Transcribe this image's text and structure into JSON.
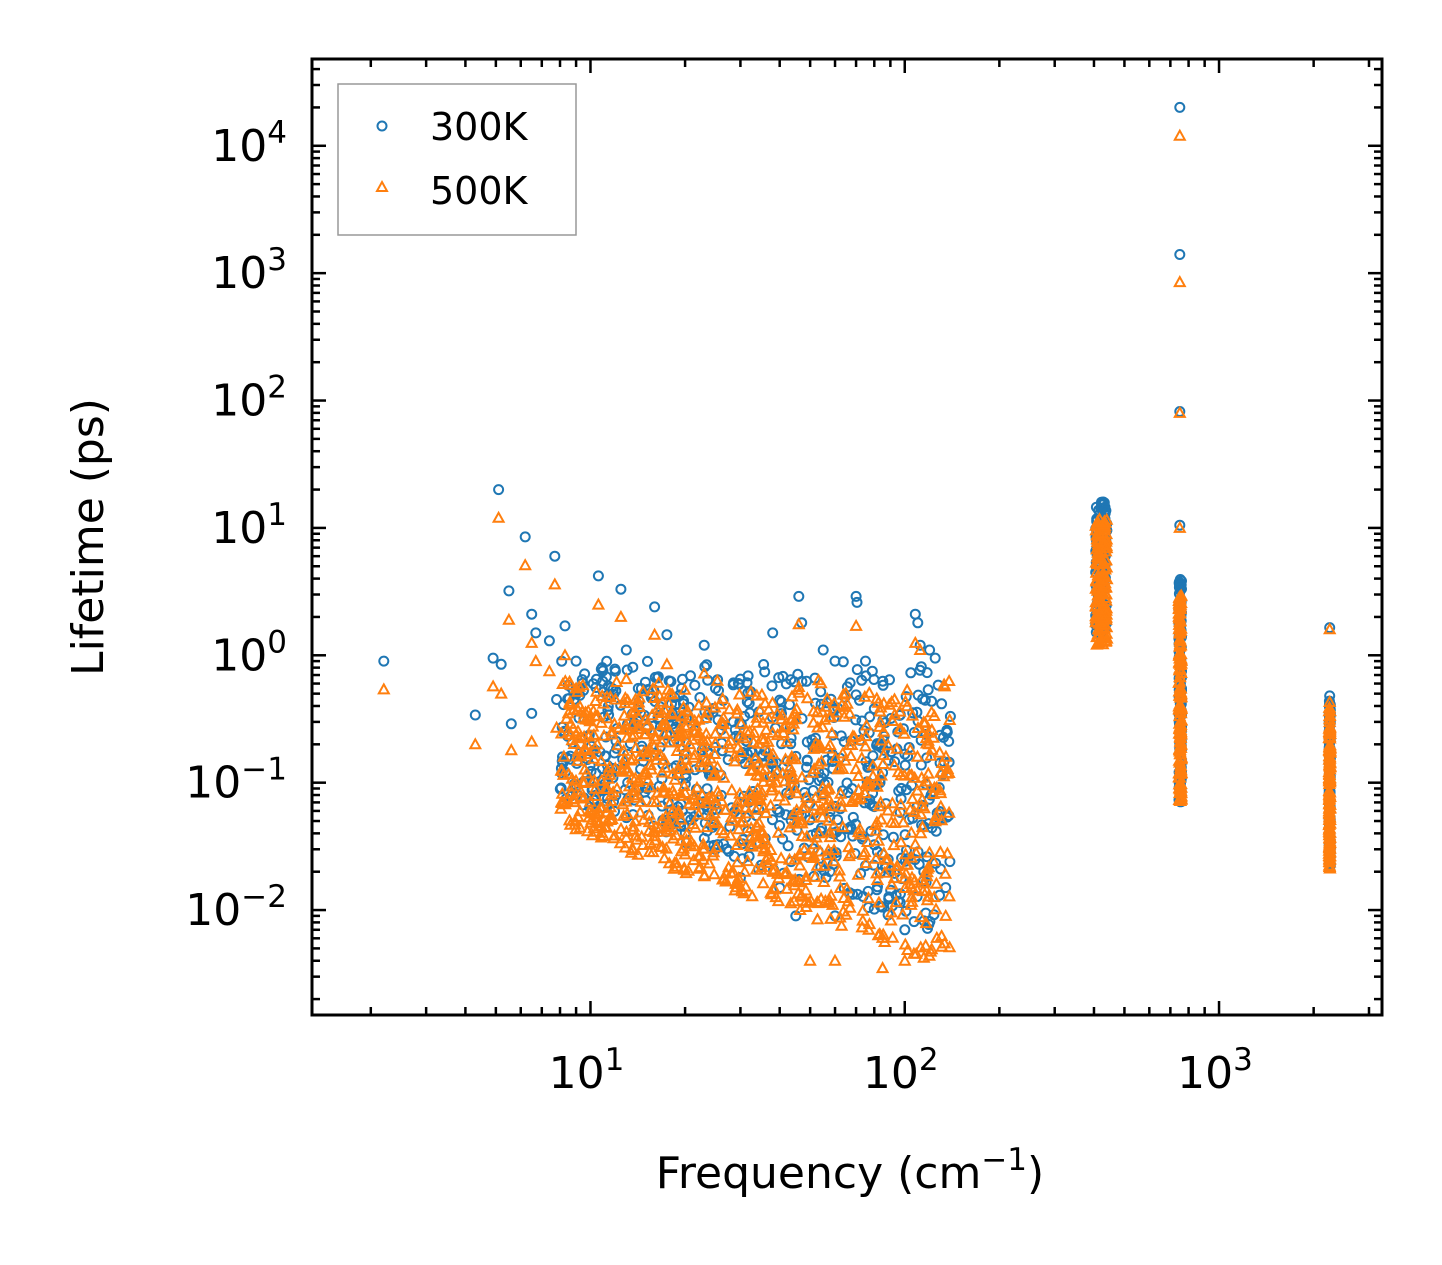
{
  "chart_data": {
    "type": "scatter",
    "title": "",
    "xlabel": "Frequency (cm",
    "xlabel_sup": "−1",
    "xlabel_suffix": ")",
    "ylabel": "Lifetime (ps)",
    "xscale": "log",
    "yscale": "log",
    "xlim": [
      1.3,
      3300
    ],
    "ylim": [
      0.0015,
      48000
    ],
    "x_ticks": [
      {
        "value": 10,
        "base": "10",
        "exp": "1"
      },
      {
        "value": 100,
        "base": "10",
        "exp": "2"
      },
      {
        "value": 1000,
        "base": "10",
        "exp": "3"
      }
    ],
    "y_ticks": [
      {
        "value": 0.01,
        "base": "10",
        "exp": "−2"
      },
      {
        "value": 0.1,
        "base": "10",
        "exp": "−1"
      },
      {
        "value": 1,
        "base": "10",
        "exp": "0"
      },
      {
        "value": 10,
        "base": "10",
        "exp": "1"
      },
      {
        "value": 100,
        "base": "10",
        "exp": "2"
      },
      {
        "value": 1000,
        "base": "10",
        "exp": "3"
      },
      {
        "value": 10000,
        "base": "10",
        "exp": "4"
      }
    ],
    "legend": {
      "position": "top-left"
    },
    "series": [
      {
        "name": "300K",
        "marker": "circle",
        "color": "#1f77b4",
        "points": [
          [
            2.2,
            0.9
          ],
          [
            4.3,
            0.34
          ],
          [
            4.9,
            0.95
          ],
          [
            5.1,
            20.0
          ],
          [
            5.2,
            0.85
          ],
          [
            5.5,
            3.2
          ],
          [
            5.6,
            0.29
          ],
          [
            6.2,
            8.5
          ],
          [
            6.5,
            2.1
          ],
          [
            6.5,
            0.35
          ],
          [
            6.7,
            1.5
          ],
          [
            7.4,
            1.3
          ],
          [
            7.7,
            6.0
          ],
          [
            7.8,
            0.45
          ],
          [
            8.3,
            1.7
          ],
          [
            8.5,
            0.58
          ],
          [
            9.0,
            0.9
          ],
          [
            9.5,
            0.53
          ],
          [
            10.6,
            4.2
          ],
          [
            10.9,
            0.8
          ],
          [
            12.0,
            0.75
          ],
          [
            12.5,
            3.3
          ],
          [
            13.0,
            1.1
          ],
          [
            14.2,
            0.55
          ],
          [
            16.0,
            2.4
          ],
          [
            17.5,
            1.45
          ],
          [
            19.5,
            0.55
          ],
          [
            23.0,
            1.2
          ],
          [
            25.0,
            0.55
          ],
          [
            30.0,
            0.65
          ],
          [
            38.0,
            1.5
          ],
          [
            46.0,
            2.9
          ],
          [
            47.0,
            1.8
          ],
          [
            55.0,
            1.1
          ],
          [
            60.0,
            0.9
          ],
          [
            70.0,
            2.9
          ],
          [
            70.5,
            2.6
          ],
          [
            75.0,
            0.9
          ],
          [
            80.0,
            0.38
          ],
          [
            85.0,
            0.12
          ],
          [
            95.0,
            0.25
          ],
          [
            108.0,
            2.1
          ],
          [
            110.0,
            1.8
          ],
          [
            112.0,
            1.2
          ],
          [
            120.0,
            1.1
          ],
          [
            125.0,
            0.95
          ],
          [
            130.0,
            0.021
          ],
          [
            135.0,
            0.015
          ],
          [
            115.0,
            0.02
          ],
          [
            100.0,
            0.007
          ],
          [
            60.0,
            0.009
          ],
          [
            45.0,
            0.009
          ],
          [
            40.0,
            0.015
          ],
          [
            30.0,
            0.018
          ],
          [
            750.0,
            20000.0
          ],
          [
            750.0,
            1400.0
          ],
          [
            750.0,
            82.0
          ],
          [
            750.0,
            10.5
          ],
          [
            2250.0,
            1.65
          ],
          [
            2250.0,
            0.48
          ]
        ],
        "clusters": [
          {
            "x_range": [
              8,
              140
            ],
            "y_range": [
              0.006,
              1.0
            ],
            "count": 650,
            "shape": "dense-wedge"
          },
          {
            "x_range": [
              405,
              440
            ],
            "y_range": [
              1.5,
              16.0
            ],
            "count": 130,
            "shape": "column"
          },
          {
            "x_range": [
              745,
              760
            ],
            "y_range": [
              0.07,
              4.0
            ],
            "count": 150,
            "shape": "column"
          },
          {
            "x_range": [
              2240,
              2260
            ],
            "y_range": [
              0.022,
              0.45
            ],
            "count": 130,
            "shape": "column"
          }
        ]
      },
      {
        "name": "500K",
        "marker": "triangle",
        "color": "#ff7f0e",
        "points": [
          [
            2.2,
            0.54
          ],
          [
            4.3,
            0.2
          ],
          [
            4.9,
            0.57
          ],
          [
            5.1,
            12.0
          ],
          [
            5.2,
            0.5
          ],
          [
            5.5,
            1.9
          ],
          [
            5.6,
            0.18
          ],
          [
            6.2,
            5.1
          ],
          [
            6.5,
            1.25
          ],
          [
            6.5,
            0.21
          ],
          [
            6.7,
            0.9
          ],
          [
            7.4,
            0.75
          ],
          [
            7.7,
            3.6
          ],
          [
            7.8,
            0.27
          ],
          [
            8.3,
            1.0
          ],
          [
            8.5,
            0.35
          ],
          [
            9.0,
            0.55
          ],
          [
            9.5,
            0.32
          ],
          [
            10.6,
            2.5
          ],
          [
            10.9,
            0.48
          ],
          [
            12.0,
            0.45
          ],
          [
            12.5,
            2.0
          ],
          [
            13.0,
            0.65
          ],
          [
            14.2,
            0.33
          ],
          [
            16.0,
            1.45
          ],
          [
            17.5,
            0.85
          ],
          [
            19.5,
            0.33
          ],
          [
            23.0,
            0.72
          ],
          [
            46.0,
            1.75
          ],
          [
            70.0,
            1.7
          ],
          [
            108.0,
            1.25
          ],
          [
            112.0,
            1.1
          ],
          [
            85.0,
            0.0035
          ],
          [
            100.0,
            0.004
          ],
          [
            60.0,
            0.004
          ],
          [
            50.0,
            0.004
          ],
          [
            135.0,
            0.009
          ],
          [
            750.0,
            12000.0
          ],
          [
            750.0,
            850.0
          ],
          [
            750.0,
            80.0
          ],
          [
            750.0,
            10.0
          ],
          [
            2250.0,
            1.6
          ],
          [
            2250.0,
            0.43
          ]
        ],
        "clusters": [
          {
            "x_range": [
              8,
              140
            ],
            "y_range": [
              0.0035,
              0.7
            ],
            "count": 1000,
            "shape": "dense-wedge"
          },
          {
            "x_range": [
              405,
              440
            ],
            "y_range": [
              1.2,
              12.0
            ],
            "count": 140,
            "shape": "column"
          },
          {
            "x_range": [
              745,
              760
            ],
            "y_range": [
              0.07,
              3.0
            ],
            "count": 160,
            "shape": "column"
          },
          {
            "x_range": [
              2240,
              2260
            ],
            "y_range": [
              0.02,
              0.4
            ],
            "count": 140,
            "shape": "column"
          }
        ]
      }
    ]
  }
}
